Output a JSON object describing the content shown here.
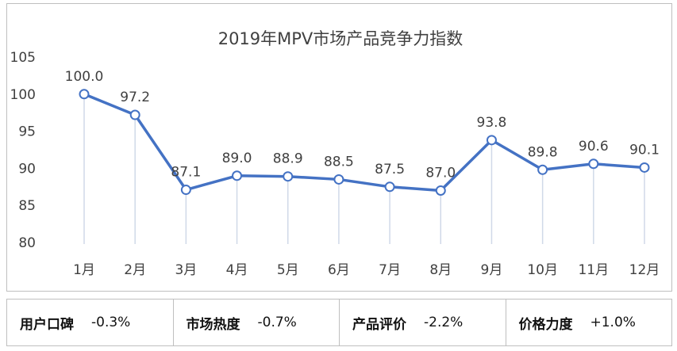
{
  "chart_data": {
    "type": "line",
    "title": "2019年MPV市场产品竞争力指数",
    "categories": [
      "1月",
      "2月",
      "3月",
      "4月",
      "5月",
      "6月",
      "7月",
      "8月",
      "9月",
      "10月",
      "11月",
      "12月"
    ],
    "values": [
      100.0,
      97.2,
      87.1,
      89.0,
      88.9,
      88.5,
      87.5,
      87.0,
      93.8,
      89.8,
      90.6,
      90.1
    ],
    "data_labels": [
      "100.0",
      "97.2",
      "87.1",
      "89.0",
      "88.9",
      "88.5",
      "87.5",
      "87.0",
      "93.8",
      "89.8",
      "90.6",
      "90.1"
    ],
    "ylim": [
      80,
      105
    ],
    "yticks": [
      80,
      85,
      90,
      95,
      100,
      105
    ],
    "ytick_labels": [
      "80",
      "85",
      "90",
      "95",
      "100",
      "105"
    ],
    "grid": false,
    "line_color": "#4472c4",
    "drop_line_color": "#d0d9e8"
  },
  "metrics": [
    {
      "name": "用户口碑",
      "value": "-0.3%"
    },
    {
      "name": "市场热度",
      "value": "-0.7%"
    },
    {
      "name": "产品评价",
      "value": "-2.2%"
    },
    {
      "name": "价格力度",
      "value": "+1.0%"
    }
  ]
}
